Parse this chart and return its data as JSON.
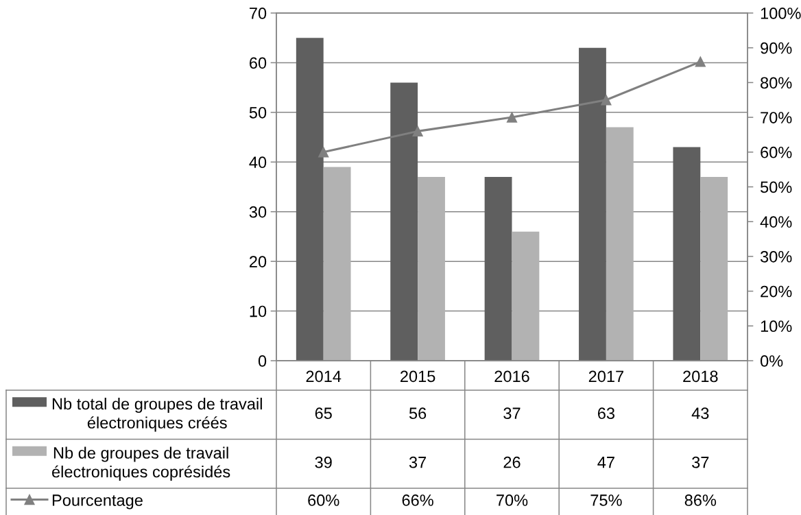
{
  "chart_data": {
    "type": "bar",
    "categories": [
      "2014",
      "2015",
      "2016",
      "2017",
      "2018"
    ],
    "series": [
      {
        "name": "Nb total de groupes de travail\nélectroniques créés",
        "color": "#5f5f5f",
        "values": [
          65,
          56,
          37,
          63,
          43
        ],
        "value_labels": [
          "65",
          "56",
          "37",
          "63",
          "43"
        ]
      },
      {
        "name": "Nb de groupes de travail\nélectroniques coprésidés",
        "color": "#b2b2b2",
        "values": [
          39,
          37,
          26,
          47,
          37
        ],
        "value_labels": [
          "39",
          "37",
          "26",
          "47",
          "37"
        ]
      },
      {
        "name": "Pourcentage",
        "type": "line",
        "axis": "y2",
        "color": "#808080",
        "marker": "triangle",
        "line_style": "solid",
        "values": [
          60,
          66,
          70,
          75,
          86
        ],
        "value_labels": [
          "60%",
          "66%",
          "70%",
          "75%",
          "86%"
        ]
      }
    ],
    "ylim": [
      0,
      70
    ],
    "yticks": [
      0,
      10,
      20,
      30,
      40,
      50,
      60,
      70
    ],
    "y2lim": [
      0,
      100
    ],
    "y2ticks": [
      {
        "value": 0,
        "label": "0%"
      },
      {
        "value": 10,
        "label": "10%"
      },
      {
        "value": 20,
        "label": "20%"
      },
      {
        "value": 30,
        "label": "30%"
      },
      {
        "value": 40,
        "label": "40%"
      },
      {
        "value": 50,
        "label": "50%"
      },
      {
        "value": 60,
        "label": "60%"
      },
      {
        "value": 70,
        "label": "70%"
      },
      {
        "value": 80,
        "label": "80%"
      },
      {
        "value": 90,
        "label": "90%"
      },
      {
        "value": 100,
        "label": "100%"
      }
    ],
    "grid": "y",
    "legend": "bottom"
  }
}
